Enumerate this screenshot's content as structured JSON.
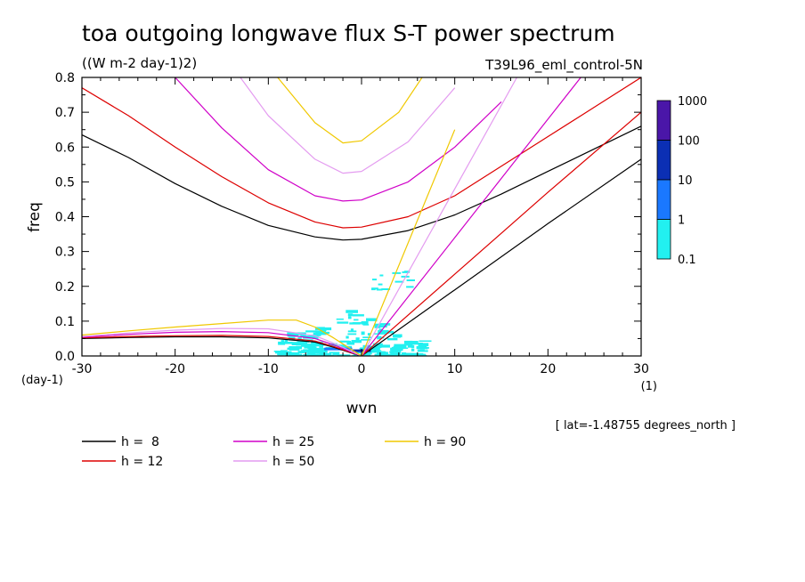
{
  "chart_data": {
    "type": "line",
    "title": "toa outgoing longwave flux S-T power spectrum",
    "units": "((W m-2 day-1)2)",
    "run_label": "T39L96_eml_control-5N",
    "xlabel": "wvn",
    "ylabel": "freq",
    "x_units": "(1)",
    "y_units": "(day-1)",
    "xlim": [
      -30,
      30
    ],
    "ylim": [
      0,
      0.8
    ],
    "x_ticks": [
      -30,
      -20,
      -10,
      0,
      10,
      20,
      30
    ],
    "x_tick_labels": [
      "-30",
      "-20",
      "-10",
      "0",
      "10",
      "20",
      "30"
    ],
    "y_ticks": [
      0,
      0.1,
      0.2,
      0.3,
      0.4,
      0.5,
      0.6,
      0.7,
      0.8
    ],
    "y_tick_labels": [
      "0.0",
      "0.1",
      "0.2",
      "0.3",
      "0.4",
      "0.5",
      "0.6",
      "0.7",
      "0.8"
    ],
    "footnote": "[ lat=-1.48755 degrees_north ]",
    "colorbar": {
      "labels": [
        "1000",
        "100",
        "10",
        "1",
        "0.1"
      ],
      "colors": [
        "#4a16a8",
        "#0b2fb4",
        "#1a78ff",
        "#22f0f0"
      ]
    },
    "dispersion_series": [
      {
        "name": "h =  8",
        "color": "#000000",
        "kelvin": {
          "x": [
            0,
            10,
            20,
            30
          ],
          "y": [
            0,
            0.19,
            0.38,
            0.565
          ]
        },
        "inertia_gravity": {
          "x": [
            -30,
            -25,
            -20,
            -15,
            -10,
            -5,
            -2,
            0,
            5,
            10,
            15,
            20,
            25,
            30
          ],
          "y": [
            0.635,
            0.57,
            0.495,
            0.43,
            0.375,
            0.342,
            0.333,
            0.335,
            0.36,
            0.405,
            0.465,
            0.53,
            0.595,
            0.66
          ]
        },
        "rossby": {
          "x": [
            -30,
            -25,
            -20,
            -15,
            -10,
            -5,
            -3,
            -1,
            0
          ],
          "y": [
            0.05,
            0.053,
            0.055,
            0.055,
            0.052,
            0.04,
            0.025,
            0.008,
            0
          ]
        }
      },
      {
        "name": "h = 12",
        "color": "#dd0000",
        "kelvin": {
          "x": [
            0,
            10,
            20,
            30
          ],
          "y": [
            0,
            0.235,
            0.47,
            0.7
          ]
        },
        "inertia_gravity": {
          "x": [
            -30,
            -25,
            -20,
            -15,
            -10,
            -5,
            -2,
            0,
            5,
            10,
            15,
            20,
            25,
            30
          ],
          "y": [
            0.77,
            0.69,
            0.6,
            0.515,
            0.44,
            0.385,
            0.368,
            0.37,
            0.4,
            0.46,
            0.545,
            0.63,
            0.715,
            0.8
          ]
        },
        "rossby": {
          "x": [
            -30,
            -25,
            -20,
            -15,
            -10,
            -5,
            -3,
            -1,
            0
          ],
          "y": [
            0.052,
            0.056,
            0.058,
            0.059,
            0.056,
            0.043,
            0.027,
            0.009,
            0
          ]
        }
      },
      {
        "name": "h = 25",
        "color": "#d000c8",
        "kelvin": {
          "x": [
            0,
            10,
            20,
            30
          ],
          "y": [
            0,
            0.34,
            0.68,
            1.02
          ]
        },
        "inertia_gravity": {
          "x": [
            -20,
            -15,
            -10,
            -5,
            -2,
            0,
            5,
            10,
            15
          ],
          "y": [
            0.8,
            0.655,
            0.535,
            0.46,
            0.445,
            0.448,
            0.5,
            0.6,
            0.73
          ]
        },
        "rossby": {
          "x": [
            -30,
            -25,
            -20,
            -15,
            -10,
            -5,
            -3,
            -1,
            0
          ],
          "y": [
            0.054,
            0.062,
            0.068,
            0.07,
            0.067,
            0.05,
            0.032,
            0.01,
            0
          ]
        }
      },
      {
        "name": "h = 50",
        "color": "#e49cf0",
        "kelvin": {
          "x": [
            0,
            10,
            20,
            30
          ],
          "y": [
            0,
            0.48,
            0.96,
            1.44
          ]
        },
        "inertia_gravity": {
          "x": [
            -13,
            -10,
            -5,
            -2,
            0,
            5,
            10
          ],
          "y": [
            0.8,
            0.69,
            0.565,
            0.525,
            0.53,
            0.615,
            0.77
          ]
        },
        "rossby": {
          "x": [
            -30,
            -25,
            -20,
            -15,
            -10,
            -5,
            -3,
            -1,
            0
          ],
          "y": [
            0.056,
            0.066,
            0.074,
            0.079,
            0.078,
            0.058,
            0.037,
            0.012,
            0
          ]
        }
      },
      {
        "name": "h = 90",
        "color": "#f0c800",
        "kelvin": {
          "x": [
            0,
            10
          ],
          "y": [
            0,
            0.65
          ]
        },
        "inertia_gravity": {
          "x": [
            -9,
            -5,
            -2,
            0,
            4,
            6.5
          ],
          "y": [
            0.8,
            0.67,
            0.612,
            0.618,
            0.7,
            0.8
          ]
        },
        "rossby": {
          "x": [
            -30,
            -25,
            -20,
            -15,
            -10,
            -7,
            -5,
            -3,
            -1,
            0
          ],
          "y": [
            0.06,
            0.072,
            0.083,
            0.093,
            0.103,
            0.103,
            0.083,
            0.052,
            0.017,
            0
          ]
        }
      }
    ],
    "power_patches": [
      {
        "x": [
          -8,
          -6
        ],
        "y": 0.064,
        "level": 1
      },
      {
        "x": [
          -4,
          -1
        ],
        "y": 0.02,
        "level": 2
      },
      {
        "x": [
          -1,
          1
        ],
        "y": 0.015,
        "level": 3
      }
    ]
  },
  "legend": {
    "items": [
      {
        "label": "h =  8",
        "color": "#000000"
      },
      {
        "label": "h = 12",
        "color": "#dd0000"
      },
      {
        "label": "h = 25",
        "color": "#d000c8"
      },
      {
        "label": "h = 50",
        "color": "#e49cf0"
      },
      {
        "label": "h = 90",
        "color": "#f0c800"
      }
    ]
  }
}
